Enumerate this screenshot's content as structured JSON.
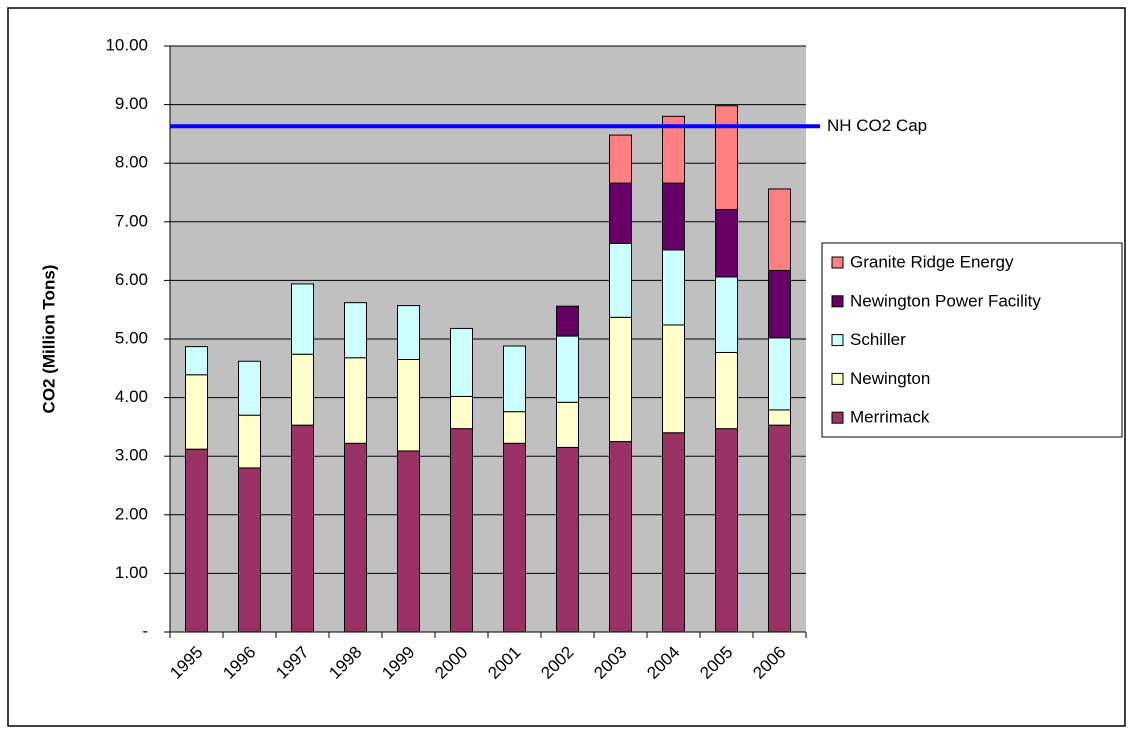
{
  "chart_data": {
    "type": "stacked-bar",
    "ylabel": "CO2 (Million Tons)",
    "categories": [
      "1995",
      "1996",
      "1997",
      "1998",
      "1999",
      "2000",
      "2001",
      "2002",
      "2003",
      "2004",
      "2005",
      "2006"
    ],
    "series": [
      {
        "name": "Merrimack",
        "color": "#993366",
        "values": [
          3.12,
          2.8,
          3.53,
          3.22,
          3.09,
          3.47,
          3.22,
          3.15,
          3.25,
          3.4,
          3.47,
          3.53
        ]
      },
      {
        "name": "Newington",
        "color": "#FFFFCC",
        "values": [
          1.27,
          0.9,
          1.21,
          1.46,
          1.56,
          0.55,
          0.54,
          0.77,
          2.12,
          1.84,
          1.3,
          0.26
        ]
      },
      {
        "name": "Schiller",
        "color": "#CCFFFF",
        "values": [
          0.48,
          0.92,
          1.2,
          0.94,
          0.92,
          1.16,
          1.12,
          1.13,
          1.26,
          1.28,
          1.29,
          1.23
        ]
      },
      {
        "name": "Newington Power Facility",
        "color": "#660066",
        "values": [
          null,
          null,
          null,
          null,
          null,
          null,
          null,
          0.51,
          1.03,
          1.14,
          1.15,
          1.15
        ]
      },
      {
        "name": "Granite Ridge Energy",
        "color": "#FF8080",
        "values": [
          null,
          null,
          null,
          null,
          null,
          null,
          null,
          null,
          0.82,
          1.14,
          1.77,
          1.39
        ]
      }
    ],
    "reference_line": {
      "value": 8.63,
      "label": "NH CO2 Cap",
      "color": "#0000FF"
    },
    "ylim": [
      0,
      10
    ],
    "yticks": [
      {
        "value": 0,
        "label": "-"
      },
      {
        "value": 1,
        "label": "1.00"
      },
      {
        "value": 2,
        "label": "2.00"
      },
      {
        "value": 3,
        "label": "3.00"
      },
      {
        "value": 4,
        "label": "4.00"
      },
      {
        "value": 5,
        "label": "5.00"
      },
      {
        "value": 6,
        "label": "6.00"
      },
      {
        "value": 7,
        "label": "7.00"
      },
      {
        "value": 8,
        "label": "8.00"
      },
      {
        "value": 9,
        "label": "9.00"
      },
      {
        "value": 10,
        "label": "10.00"
      }
    ],
    "grid": true,
    "plot_background": "#C0C0C0",
    "legend": "right"
  }
}
